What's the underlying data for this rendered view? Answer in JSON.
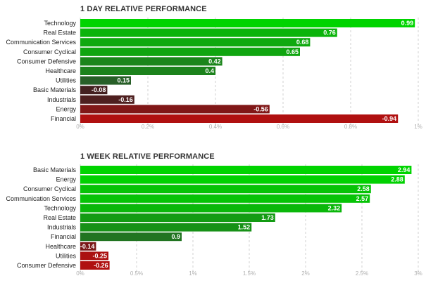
{
  "chart_data": [
    {
      "type": "bar",
      "orientation": "horizontal",
      "title": "1 DAY RELATIVE PERFORMANCE",
      "categories": [
        "Technology",
        "Real Estate",
        "Communication Services",
        "Consumer Cyclical",
        "Consumer Defensive",
        "Healthcare",
        "Utilities",
        "Basic Materials",
        "Industrials",
        "Energy",
        "Financial"
      ],
      "values": [
        0.99,
        0.76,
        0.68,
        0.65,
        0.42,
        0.4,
        0.15,
        -0.08,
        -0.16,
        -0.56,
        -0.94
      ],
      "value_labels": [
        "0.99",
        "0.76",
        "0.68",
        "0.65",
        "0.42",
        "0.4",
        "0.15",
        "-0.08",
        "-0.16",
        "-0.56",
        "-0.94"
      ],
      "xlim": [
        0,
        1
      ],
      "x_ticks": [
        0,
        0.2,
        0.4,
        0.6,
        0.8,
        1
      ],
      "x_tick_labels": [
        "0%",
        "0.2%",
        "0.4%",
        "0.6%",
        "0.8%",
        "1%"
      ],
      "grid": true
    },
    {
      "type": "bar",
      "orientation": "horizontal",
      "title": "1 WEEK RELATIVE PERFORMANCE",
      "categories": [
        "Basic Materials",
        "Energy",
        "Consumer Cyclical",
        "Communication Services",
        "Technology",
        "Real Estate",
        "Industrials",
        "Financial",
        "Healthcare",
        "Utilities",
        "Consumer Defensive"
      ],
      "values": [
        2.94,
        2.88,
        2.58,
        2.57,
        2.32,
        1.73,
        1.52,
        0.9,
        -0.14,
        -0.25,
        -0.26
      ],
      "value_labels": [
        "2.94",
        "2.88",
        "2.58",
        "2.57",
        "2.32",
        "1.73",
        "1.52",
        "0.9",
        "-0.14",
        "-0.25",
        "-0.26"
      ],
      "xlim": [
        0,
        3
      ],
      "x_ticks": [
        0,
        0.5,
        1,
        1.5,
        2,
        2.5,
        3
      ],
      "x_tick_labels": [
        "0%",
        "0.5%",
        "1%",
        "1.5%",
        "2%",
        "2.5%",
        "3%"
      ],
      "grid": true
    }
  ],
  "colors": {
    "positive_max": "#00d400",
    "positive_min": "#2f4a2f",
    "negative_min": "#3a2222",
    "negative_max": "#b01010",
    "grid": "#d0d0d0",
    "axis_text": "#b0b0b0",
    "title_text": "#333333"
  }
}
